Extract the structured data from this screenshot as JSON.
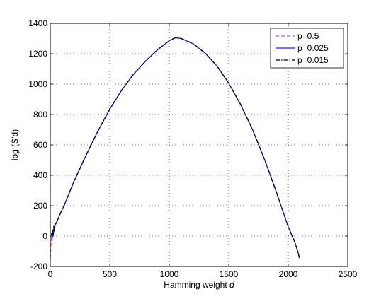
{
  "chart_data": {
    "type": "line",
    "xlabel_prefix": "Hamming weight ",
    "xlabel_var": "d",
    "ylabel": "log (S'd)",
    "xlim": [
      0,
      2500
    ],
    "ylim": [
      -200,
      1400
    ],
    "xticks": [
      0,
      500,
      1000,
      1500,
      2000,
      2500
    ],
    "yticks": [
      -200,
      0,
      200,
      400,
      600,
      800,
      1000,
      1200,
      1400
    ],
    "grid": true,
    "legend_position": "top-right",
    "series": [
      {
        "name": "p=0.5",
        "color": "#cc44ee",
        "style": "dashed",
        "x": [
          1,
          5,
          10,
          20,
          30,
          50,
          80,
          120,
          200,
          300,
          400,
          500,
          600,
          700,
          800,
          900,
          1000,
          1050,
          1100,
          1200,
          1300,
          1400,
          1500,
          1600,
          1700,
          1800,
          1900,
          2000,
          2050,
          2080,
          2094
        ],
        "y": [
          -145,
          -60,
          -15,
          25,
          48,
          85,
          140,
          208,
          360,
          530,
          690,
          835,
          960,
          1065,
          1150,
          1225,
          1285,
          1305,
          1300,
          1265,
          1205,
          1120,
          1005,
          865,
          700,
          505,
          290,
          60,
          -30,
          -100,
          -145
        ]
      },
      {
        "name": "p=0.025",
        "color": "#2222ee",
        "style": "solid",
        "x": [
          10,
          15,
          20,
          25,
          30,
          35,
          40,
          50,
          80,
          120,
          200,
          300,
          400,
          500,
          600,
          700,
          800,
          900,
          1000,
          1050,
          1100,
          1200,
          1300,
          1400,
          1500,
          1600,
          1700,
          1800,
          1900,
          2000,
          2050,
          2080,
          2094
        ],
        "y": [
          15,
          -20,
          40,
          0,
          60,
          30,
          75,
          85,
          140,
          208,
          360,
          530,
          690,
          835,
          960,
          1065,
          1150,
          1225,
          1285,
          1305,
          1300,
          1265,
          1205,
          1120,
          1005,
          865,
          700,
          505,
          290,
          60,
          -30,
          -100,
          -145
        ]
      },
      {
        "name": "p=0.015",
        "color": "#000000",
        "style": "dashdot",
        "x": [
          10,
          15,
          20,
          25,
          30,
          35,
          40,
          50,
          80,
          120,
          200,
          300,
          400,
          500,
          600,
          700,
          800,
          900,
          1000,
          1050,
          1100,
          1200,
          1300,
          1400,
          1500,
          1600,
          1700,
          1800,
          1900,
          2000,
          2050,
          2080,
          2094
        ],
        "y": [
          20,
          -10,
          45,
          10,
          65,
          35,
          80,
          88,
          142,
          210,
          362,
          532,
          691,
          836,
          961,
          1066,
          1151,
          1226,
          1286,
          1305,
          1301,
          1266,
          1206,
          1121,
          1006,
          866,
          701,
          506,
          291,
          61,
          -29,
          -99,
          -145
        ]
      }
    ]
  }
}
